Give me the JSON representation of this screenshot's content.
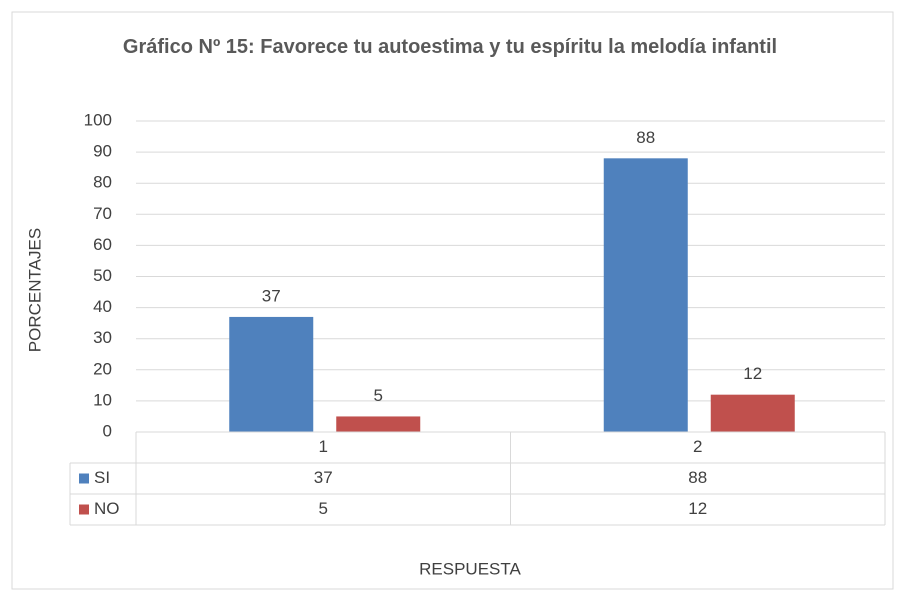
{
  "chart_data": {
    "type": "bar",
    "title": "Gráfico Nº 15: Favorece tu autoestima y tu espíritu la melodía infantil",
    "categories": [
      "1",
      "2"
    ],
    "series": [
      {
        "name": "SI",
        "color": "#4f81bd",
        "values": [
          37,
          88
        ]
      },
      {
        "name": "NO",
        "color": "#c0504d",
        "values": [
          5,
          12
        ]
      }
    ],
    "ylim": [
      0,
      100
    ],
    "yticks": [
      0,
      10,
      20,
      30,
      40,
      50,
      60,
      70,
      80,
      90,
      100
    ],
    "grid": true,
    "x_label": "RESPUESTA",
    "y_label": "PORCENTAJES"
  }
}
